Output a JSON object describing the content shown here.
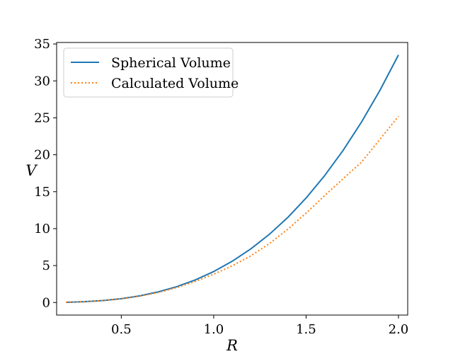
{
  "chart_data": {
    "type": "line",
    "xlabel": "R",
    "ylabel": "V",
    "xlim": [
      0.15,
      2.05
    ],
    "ylim": [
      -1.7,
      35.2
    ],
    "xticks": [
      0.5,
      1.0,
      1.5,
      2.0
    ],
    "xtick_labels": [
      "0.5",
      "1.0",
      "1.5",
      "2.0"
    ],
    "yticks": [
      0,
      5,
      10,
      15,
      20,
      25,
      30,
      35
    ],
    "ytick_labels": [
      "0",
      "5",
      "10",
      "15",
      "20",
      "25",
      "30",
      "35"
    ],
    "legend_position": "top-left",
    "series": [
      {
        "name": "Spherical Volume",
        "color": "#1f77b4",
        "style": "solid",
        "x": [
          0.2,
          0.3,
          0.4,
          0.5,
          0.6,
          0.7,
          0.8,
          0.9,
          1.0,
          1.1,
          1.2,
          1.3,
          1.4,
          1.5,
          1.6,
          1.7,
          1.8,
          1.9,
          2.0
        ],
        "y": [
          0.03,
          0.11,
          0.27,
          0.52,
          0.9,
          1.44,
          2.14,
          3.05,
          4.19,
          5.58,
          7.24,
          9.2,
          11.49,
          14.14,
          17.16,
          20.58,
          24.43,
          28.73,
          33.51
        ]
      },
      {
        "name": "Calculated Volume",
        "color": "#ff7f0e",
        "style": "dotted",
        "x": [
          0.2,
          0.3,
          0.4,
          0.5,
          0.6,
          0.7,
          0.8,
          0.9,
          1.0,
          1.1,
          1.2,
          1.3,
          1.4,
          1.5,
          1.6,
          1.7,
          1.8,
          1.9,
          2.0
        ],
        "y": [
          0.03,
          0.1,
          0.25,
          0.5,
          0.86,
          1.36,
          2.02,
          2.85,
          3.83,
          4.97,
          6.3,
          7.95,
          9.9,
          12.1,
          14.45,
          16.75,
          19.0,
          22.1,
          25.2
        ]
      }
    ]
  }
}
